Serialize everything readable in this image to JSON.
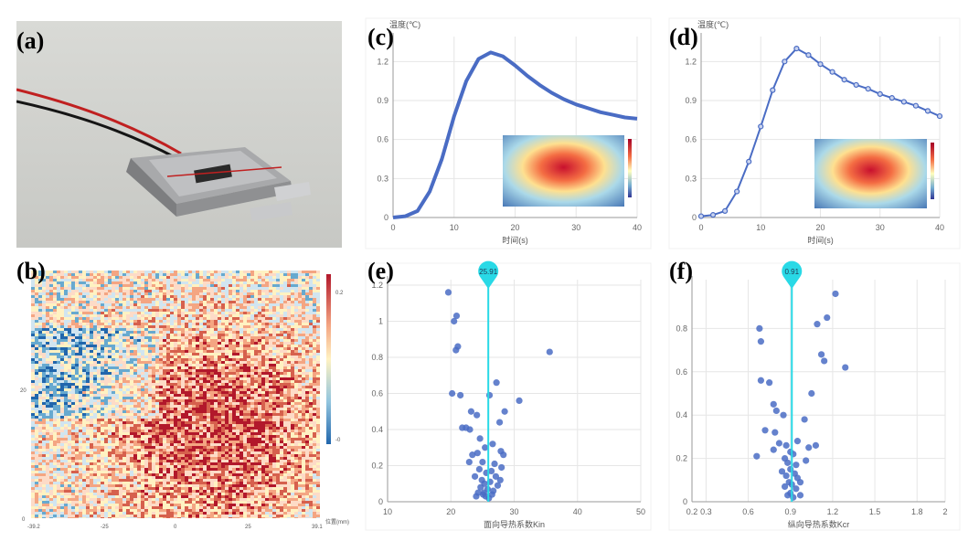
{
  "panel_labels": {
    "a": "(a)",
    "b": "(b)",
    "c": "(c)",
    "d": "(d)",
    "e": "(e)",
    "f": "(f)"
  },
  "colors": {
    "series": "#4a6cc4",
    "marker": "#29d9e6",
    "grid": "#e6e6e6",
    "axis": "#9a9a9a"
  },
  "photo": {
    "description_icon": "battery-with-wires-photo"
  },
  "panel_b": {
    "y_ticks": [
      "20",
      "0"
    ],
    "x_ticks": [
      "-39.2",
      "-25",
      "0",
      "25",
      "39.1"
    ],
    "x_unit": "位置(mm)",
    "colorbar_ticks": [
      "0.2",
      "-0"
    ]
  },
  "chart_data": [
    {
      "id": "c",
      "type": "line",
      "ylabel": "温度(℃)",
      "xlabel": "时间(s)",
      "xlim": [
        0,
        40
      ],
      "ylim": [
        0,
        1.35
      ],
      "x_ticks": [
        0,
        10,
        20,
        30,
        40
      ],
      "y_ticks": [
        0,
        0.3,
        0.6,
        0.9,
        1.2
      ],
      "x_tick_labels": [
        "0",
        "10",
        "20",
        "30",
        "40"
      ],
      "y_tick_labels": [
        "0",
        "0.3",
        "0.6",
        "0.9",
        "1.2"
      ],
      "series": [
        {
          "x": [
            0,
            2,
            4,
            6,
            8,
            10,
            12,
            14,
            16,
            18,
            20,
            22,
            24,
            26,
            28,
            30,
            32,
            34,
            36,
            38,
            40
          ],
          "y": [
            0,
            0.01,
            0.05,
            0.2,
            0.45,
            0.78,
            1.05,
            1.22,
            1.27,
            1.24,
            1.17,
            1.09,
            1.02,
            0.96,
            0.91,
            0.87,
            0.84,
            0.81,
            0.79,
            0.77,
            0.76
          ]
        }
      ],
      "grid": true
    },
    {
      "id": "d",
      "type": "line",
      "ylabel": "温度(℃)",
      "xlabel": "时间(s)",
      "xlim": [
        0,
        40
      ],
      "ylim": [
        0,
        1.35
      ],
      "x_ticks": [
        0,
        10,
        20,
        30,
        40
      ],
      "y_ticks": [
        0,
        0.3,
        0.6,
        0.9,
        1.2
      ],
      "x_tick_labels": [
        "0",
        "10",
        "20",
        "30",
        "40"
      ],
      "y_tick_labels": [
        "0",
        "0.3",
        "0.6",
        "0.9",
        "1.2"
      ],
      "series": [
        {
          "x": [
            0,
            2,
            4,
            6,
            8,
            10,
            12,
            14,
            16,
            18,
            20,
            22,
            24,
            26,
            28,
            30,
            32,
            34,
            36,
            38,
            40
          ],
          "y": [
            0.01,
            0.02,
            0.05,
            0.2,
            0.43,
            0.7,
            0.98,
            1.2,
            1.3,
            1.25,
            1.18,
            1.12,
            1.06,
            1.02,
            0.99,
            0.95,
            0.92,
            0.89,
            0.86,
            0.82,
            0.78
          ]
        }
      ],
      "grid": true
    },
    {
      "id": "e",
      "type": "scatter",
      "xlabel": "面向导热系数Kin",
      "xlim": [
        10,
        50
      ],
      "ylim": [
        0,
        1.2
      ],
      "x_ticks": [
        10,
        20,
        30,
        40,
        50
      ],
      "y_ticks": [
        0,
        0.2,
        0.4,
        0.6,
        0.8,
        1.0,
        1.2
      ],
      "x_tick_labels": [
        "10",
        "20",
        "30",
        "40",
        "50"
      ],
      "y_tick_labels": [
        "0",
        "0.2",
        "0.4",
        "0.6",
        "0.8",
        "1",
        "1.2"
      ],
      "marker_value": 25.91,
      "marker_label": "25.91",
      "points": [
        [
          19.6,
          1.16
        ],
        [
          20.5,
          1.0
        ],
        [
          20.9,
          1.03
        ],
        [
          21.1,
          0.86
        ],
        [
          20.8,
          0.84
        ],
        [
          35.6,
          0.83
        ],
        [
          20.2,
          0.6
        ],
        [
          21.5,
          0.59
        ],
        [
          27.2,
          0.66
        ],
        [
          30.8,
          0.56
        ],
        [
          26.1,
          0.59
        ],
        [
          23.2,
          0.5
        ],
        [
          24.1,
          0.48
        ],
        [
          28.5,
          0.5
        ],
        [
          21.8,
          0.41
        ],
        [
          22.4,
          0.41
        ],
        [
          23.0,
          0.4
        ],
        [
          27.7,
          0.44
        ],
        [
          24.6,
          0.35
        ],
        [
          25.4,
          0.3
        ],
        [
          26.6,
          0.32
        ],
        [
          23.4,
          0.26
        ],
        [
          24.2,
          0.27
        ],
        [
          27.9,
          0.28
        ],
        [
          28.3,
          0.26
        ],
        [
          25.0,
          0.22
        ],
        [
          26.9,
          0.21
        ],
        [
          24.5,
          0.18
        ],
        [
          25.6,
          0.16
        ],
        [
          26.4,
          0.17
        ],
        [
          27.1,
          0.14
        ],
        [
          24.9,
          0.12
        ],
        [
          25.3,
          0.1
        ],
        [
          26.2,
          0.11
        ],
        [
          24.7,
          0.08
        ],
        [
          25.8,
          0.07
        ],
        [
          26.7,
          0.06
        ],
        [
          25.1,
          0.04
        ],
        [
          25.5,
          0.03
        ],
        [
          26.0,
          0.02
        ],
        [
          24.3,
          0.05
        ],
        [
          27.4,
          0.09
        ],
        [
          23.8,
          0.14
        ],
        [
          28.0,
          0.19
        ],
        [
          22.9,
          0.22
        ],
        [
          24.0,
          0.03
        ],
        [
          26.5,
          0.04
        ],
        [
          25.2,
          0.05
        ],
        [
          27.8,
          0.12
        ]
      ],
      "grid": true
    },
    {
      "id": "f",
      "type": "scatter",
      "xlabel": "纵向导热系数Kcr",
      "xlim": [
        0.2,
        2.0
      ],
      "ylim": [
        0,
        1.0
      ],
      "x_ticks": [
        0.2,
        0.3,
        0.6,
        0.9,
        1.2,
        1.5,
        1.8,
        2.0
      ],
      "y_ticks": [
        0,
        0.2,
        0.4,
        0.6,
        0.8
      ],
      "x_tick_labels": [
        "0.2",
        "0.3",
        "0.6",
        "0.9",
        "1.2",
        "1.5",
        "1.8",
        "2"
      ],
      "y_tick_labels": [
        "0",
        "0.2",
        "0.4",
        "0.6",
        "0.8"
      ],
      "marker_value": 0.91,
      "marker_label": "0.91",
      "points": [
        [
          0.68,
          0.8
        ],
        [
          0.69,
          0.74
        ],
        [
          0.69,
          0.56
        ],
        [
          1.22,
          0.96
        ],
        [
          1.16,
          0.85
        ],
        [
          1.09,
          0.82
        ],
        [
          1.29,
          0.62
        ],
        [
          1.12,
          0.68
        ],
        [
          1.14,
          0.65
        ],
        [
          1.05,
          0.5
        ],
        [
          0.75,
          0.55
        ],
        [
          0.78,
          0.45
        ],
        [
          0.8,
          0.42
        ],
        [
          0.85,
          0.4
        ],
        [
          1.0,
          0.38
        ],
        [
          0.72,
          0.33
        ],
        [
          0.79,
          0.32
        ],
        [
          0.82,
          0.27
        ],
        [
          0.87,
          0.26
        ],
        [
          0.95,
          0.28
        ],
        [
          1.03,
          0.25
        ],
        [
          1.08,
          0.26
        ],
        [
          0.9,
          0.23
        ],
        [
          0.92,
          0.22
        ],
        [
          0.86,
          0.2
        ],
        [
          0.88,
          0.18
        ],
        [
          0.94,
          0.17
        ],
        [
          0.9,
          0.15
        ],
        [
          0.93,
          0.13
        ],
        [
          0.87,
          0.12
        ],
        [
          0.95,
          0.11
        ],
        [
          0.89,
          0.09
        ],
        [
          0.91,
          0.08
        ],
        [
          0.86,
          0.07
        ],
        [
          0.94,
          0.06
        ],
        [
          0.9,
          0.04
        ],
        [
          0.88,
          0.03
        ],
        [
          0.92,
          0.02
        ],
        [
          0.97,
          0.09
        ],
        [
          0.84,
          0.14
        ],
        [
          1.01,
          0.19
        ],
        [
          0.78,
          0.24
        ],
        [
          0.66,
          0.21
        ],
        [
          0.97,
          0.03
        ]
      ],
      "grid": true
    }
  ]
}
